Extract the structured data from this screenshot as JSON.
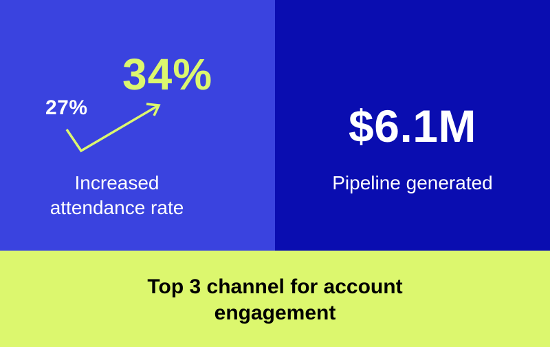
{
  "colors": {
    "left_panel": "#3a43df",
    "right_panel": "#0a0db0",
    "bottom_panel": "#dcf76e",
    "accent": "#dcf76e",
    "text_light": "#ffffff",
    "text_dark": "#000000"
  },
  "attendance": {
    "before": "27%",
    "after": "34%",
    "caption_line1": "Increased",
    "caption_line2": "attendance rate",
    "icon": "trend-up-arrow-icon"
  },
  "pipeline": {
    "value": "$6.1M",
    "caption": "Pipeline generated"
  },
  "engagement": {
    "line1": "Top 3 channel for account",
    "line2": "engagement"
  }
}
